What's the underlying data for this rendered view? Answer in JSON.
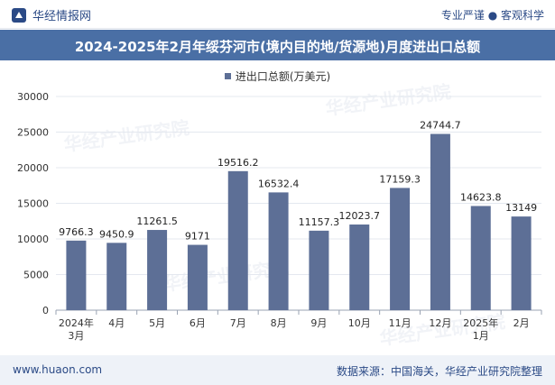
{
  "header": {
    "brand": "华经情报网",
    "tagline": "专业严谨 ● 客观科学"
  },
  "chart_data": {
    "type": "bar",
    "title": "2024-2025年2月年绥芬河市(境内目的地/货源地)月度进出口总额",
    "legend": "进出口总额(万美元)",
    "categories": [
      "2024年3月",
      "4月",
      "5月",
      "6月",
      "7月",
      "8月",
      "9月",
      "10月",
      "11月",
      "12月",
      "2025年1月",
      "2月"
    ],
    "category_lines": [
      [
        "2024年",
        "3月"
      ],
      [
        "4月"
      ],
      [
        "5月"
      ],
      [
        "6月"
      ],
      [
        "7月"
      ],
      [
        "8月"
      ],
      [
        "9月"
      ],
      [
        "10月"
      ],
      [
        "11月"
      ],
      [
        "12月"
      ],
      [
        "2025年",
        "1月"
      ],
      [
        "2月"
      ]
    ],
    "values": [
      9766.3,
      9450.9,
      11261.5,
      9171,
      19516.2,
      16532.4,
      11157.3,
      12023.7,
      17159.3,
      24744.7,
      14623.8,
      13149
    ],
    "value_labels": [
      "9766.3",
      "9450.9",
      "11261.5",
      "9171",
      "19516.2",
      "16532.4",
      "11157.3",
      "12023.7",
      "17159.3",
      "24744.7",
      "14623.8",
      "13149"
    ],
    "ylim": [
      0,
      30000
    ],
    "yticks": [
      0,
      5000,
      10000,
      15000,
      20000,
      25000,
      30000
    ],
    "xlabel": "",
    "ylabel": "",
    "bar_color": "#5d6f96"
  },
  "watermark": "华经产业研究院",
  "footer": {
    "website": "www.huaon.com",
    "source": "数据来源：中国海关，华经产业研究院整理"
  }
}
